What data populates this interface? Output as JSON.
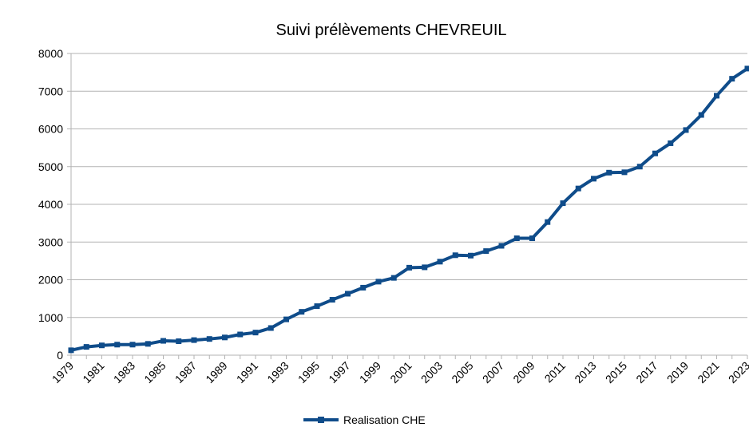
{
  "chart_data": {
    "type": "line",
    "title": "Suivi prélèvements CHEVREUIL",
    "categories": [
      "1979",
      null,
      "1981",
      null,
      "1983",
      null,
      "1985",
      null,
      "1987",
      null,
      "1989",
      null,
      "1991",
      null,
      "1993",
      null,
      "1995",
      null,
      "1997",
      null,
      "1999",
      null,
      "2001",
      null,
      "2003",
      null,
      "2005",
      null,
      "2007",
      null,
      "2009",
      null,
      "2011",
      null,
      "2013",
      null,
      "2015",
      null,
      "2017",
      null,
      "2019",
      null,
      "2021",
      null,
      "2023"
    ],
    "series": [
      {
        "name": "Realisation CHE",
        "color": "#0f4c8a",
        "values": [
          130,
          220,
          260,
          280,
          280,
          300,
          380,
          370,
          400,
          430,
          470,
          550,
          600,
          720,
          950,
          1150,
          1300,
          1470,
          1630,
          1790,
          1950,
          2050,
          2320,
          2330,
          2480,
          2650,
          2640,
          2760,
          2900,
          3100,
          3100,
          3530,
          4030,
          4420,
          4680,
          4840,
          4850,
          5000,
          5350,
          5620,
          5970,
          6370,
          6880,
          7330,
          7600
        ]
      }
    ],
    "ylim": [
      0,
      8000
    ],
    "yticks": [
      0,
      1000,
      2000,
      3000,
      4000,
      5000,
      6000,
      7000,
      8000
    ],
    "grid": true,
    "legend": "bottom"
  }
}
